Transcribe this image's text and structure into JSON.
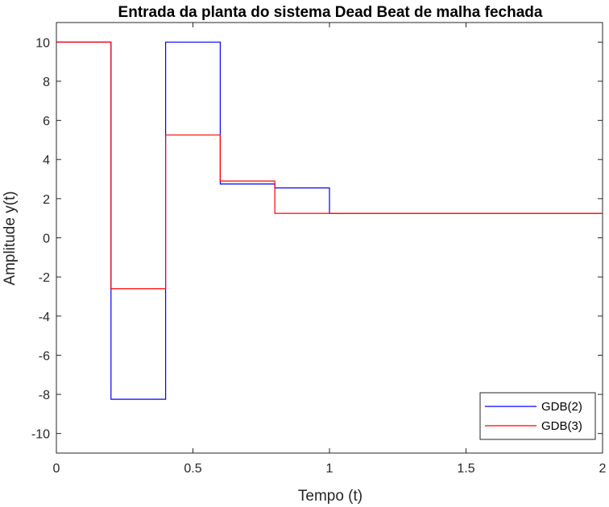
{
  "chart_data": {
    "type": "line",
    "step": true,
    "title": "Entrada da planta do sistema Dead Beat de malha fechada",
    "xlabel": "Tempo (t)",
    "ylabel": "Amplitude y(t)",
    "xlim": [
      0,
      2
    ],
    "ylim": [
      -11,
      11
    ],
    "xticks": [
      0,
      0.5,
      1,
      1.5,
      2
    ],
    "xtick_labels": [
      "0",
      "0.5",
      "1",
      "1.5",
      "2"
    ],
    "yticks": [
      10,
      8,
      6,
      4,
      2,
      0,
      -2,
      -4,
      -6,
      -8,
      -10
    ],
    "ytick_labels": [
      "10",
      "8",
      "6",
      "4",
      "2",
      "0",
      "-2",
      "-4",
      "-6",
      "-8",
      "-10"
    ],
    "grid": false,
    "legend_position": "bottom-right",
    "series": [
      {
        "name": "GDB(2)",
        "color": "#0000ff",
        "x": [
          0,
          0.2,
          0.4,
          0.6,
          0.8,
          1.0,
          2.0
        ],
        "y": [
          10,
          -8.25,
          10,
          2.75,
          2.55,
          1.25,
          1.25
        ]
      },
      {
        "name": "GDB(3)",
        "color": "#ff0000",
        "x": [
          0,
          0.2,
          0.4,
          0.6,
          0.8,
          1.0,
          2.0
        ],
        "y": [
          10,
          -2.6,
          5.25,
          2.9,
          1.25,
          1.25,
          1.25
        ]
      }
    ]
  }
}
